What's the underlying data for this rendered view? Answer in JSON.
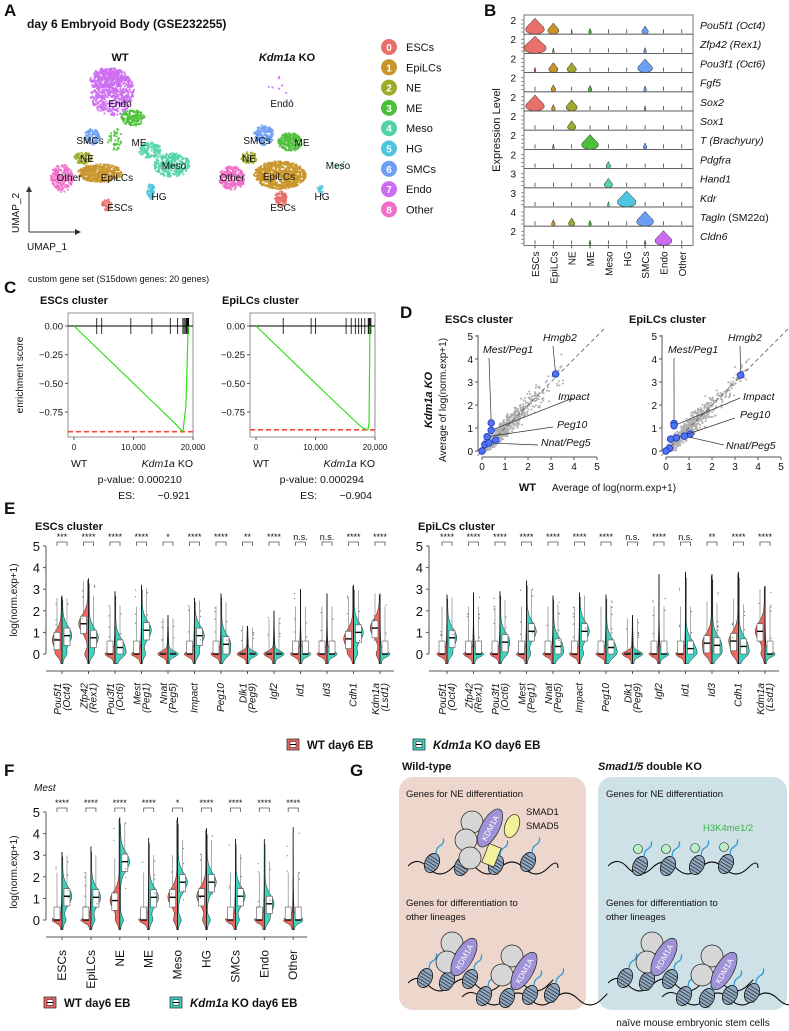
{
  "panel_labels": {
    "A": "A",
    "B": "B",
    "C": "C",
    "D": "D",
    "E": "E",
    "F": "F",
    "G": "G"
  },
  "A": {
    "title": "day 6 Embryoid Body (GSE232255)",
    "wt_title": "WT",
    "ko_title_gene": "Kdm1a",
    "ko_title_suffix": " KO",
    "umap_x": "UMAP_1",
    "umap_y": "UMAP_2",
    "clusters": [
      {
        "id": "0",
        "name": "ESCs",
        "color": "#E8706A"
      },
      {
        "id": "1",
        "name": "EpiLCs",
        "color": "#C9952A"
      },
      {
        "id": "2",
        "name": "NE",
        "color": "#9EAA2A"
      },
      {
        "id": "3",
        "name": "ME",
        "color": "#4CBF3A"
      },
      {
        "id": "4",
        "name": "Meso",
        "color": "#52D3A6"
      },
      {
        "id": "5",
        "name": "HG",
        "color": "#4EC4DE"
      },
      {
        "id": "6",
        "name": "SMCs",
        "color": "#6E9EF2"
      },
      {
        "id": "7",
        "name": "Endo",
        "color": "#CC6CF0"
      },
      {
        "id": "8",
        "name": "Other",
        "color": "#F06EC8"
      }
    ]
  },
  "chart_data": [
    {
      "panel": "B",
      "type": "violin",
      "ylabel": "Expression Level",
      "categories": [
        "ESCs",
        "EpiLCs",
        "NE",
        "ME",
        "Meso",
        "HG",
        "SMCs",
        "Endo",
        "Other"
      ],
      "genes": [
        {
          "gene": "Pou5f1",
          "alias": "(Oct4)",
          "alias_italic": true,
          "ytick": "2",
          "widths": [
            1,
            0.6,
            0.05,
            0.15,
            0,
            0,
            0.35,
            0,
            0
          ]
        },
        {
          "gene": "Zfp42",
          "alias": "(Rex1)",
          "alias_italic": true,
          "ytick": "2",
          "widths": [
            1.2,
            0.1,
            0,
            0,
            0,
            0,
            0.15,
            0,
            0
          ]
        },
        {
          "gene": "Pou3f1",
          "alias": "(Oct6)",
          "alias_italic": true,
          "ytick": "2",
          "widths": [
            0.1,
            0.5,
            0.5,
            0,
            0,
            0,
            0.8,
            0,
            0
          ]
        },
        {
          "gene": "Fgf5",
          "alias": "",
          "alias_italic": true,
          "ytick": "2",
          "widths": [
            0,
            0.25,
            0,
            0.2,
            0,
            0,
            0.15,
            0,
            0
          ]
        },
        {
          "gene": "Sox2",
          "alias": "",
          "alias_italic": true,
          "ytick": "2",
          "widths": [
            1,
            0.2,
            0.6,
            0,
            0,
            0,
            0.1,
            0,
            0
          ]
        },
        {
          "gene": "Sox1",
          "alias": "",
          "alias_italic": true,
          "ytick": "2",
          "widths": [
            0,
            0,
            0.45,
            0,
            0,
            0,
            0,
            0,
            0
          ]
        },
        {
          "gene": "T",
          "alias": "(Brachyury)",
          "alias_italic": true,
          "ytick": "2",
          "widths": [
            0,
            0.1,
            0,
            0.9,
            0,
            0,
            0.2,
            0,
            0
          ]
        },
        {
          "gene": "Pdgfra",
          "alias": "",
          "alias_italic": true,
          "ytick": "2",
          "widths": [
            0,
            0,
            0,
            0,
            0.25,
            0,
            0,
            0,
            0
          ]
        },
        {
          "gene": "Hand1",
          "alias": "",
          "alias_italic": true,
          "ytick": "3",
          "widths": [
            0,
            0,
            0,
            0,
            0.45,
            0,
            0,
            0,
            0
          ]
        },
        {
          "gene": "Kdr",
          "alias": "",
          "alias_italic": true,
          "ytick": "3",
          "widths": [
            0,
            0,
            0,
            0,
            0.1,
            1,
            0,
            0,
            0
          ]
        },
        {
          "gene": "Tagln",
          "alias": "(SM22α)",
          "alias_italic": false,
          "ytick": "4",
          "widths": [
            0,
            0.2,
            0.35,
            0.15,
            0,
            0,
            0.9,
            0,
            0
          ]
        },
        {
          "gene": "Cldn6",
          "alias": "",
          "alias_italic": true,
          "ytick": "2",
          "widths": [
            0,
            0,
            0,
            0.1,
            0,
            0,
            0.1,
            0.9,
            0
          ]
        }
      ]
    },
    {
      "panel": "C",
      "type": "line",
      "suptitle": "custom gene set (S15down genes: 20 genes)",
      "title": "ESCs cluster",
      "ylabel": "enrichment score",
      "yticks": [
        "0.00",
        "−0.25",
        "−0.50",
        "−0.75"
      ],
      "ytick_values": [
        0,
        -0.25,
        -0.5,
        -0.75
      ],
      "xticks": [
        "0",
        "10,000",
        "20,000"
      ],
      "xtick_values": [
        0,
        10000,
        20000
      ],
      "xlim": [
        0,
        20000
      ],
      "x_left_label": "WT",
      "x_right_gene": "Kdm1a",
      "x_right_suffix": " KO",
      "pvalue_label": "p-value:",
      "pvalue": "0.000210",
      "es_label": "ES:",
      "es": "−0.921",
      "es_value": -0.921,
      "hits": [
        3820,
        4660,
        9550,
        13090,
        16180,
        17420,
        18300,
        18500,
        18700,
        18900,
        19000,
        19100,
        19200,
        19270
      ],
      "curve": [
        [
          0,
          0
        ],
        [
          6000,
          -0.3
        ],
        [
          12000,
          -0.6
        ],
        [
          17000,
          -0.85
        ],
        [
          18300,
          -0.921
        ],
        [
          18800,
          -0.7
        ],
        [
          19200,
          0
        ]
      ]
    },
    {
      "panel": "C",
      "type": "line",
      "title": "EpiLCs cluster",
      "yticks": [
        "0.00",
        "−0.25",
        "−0.50",
        "−0.75"
      ],
      "ytick_values": [
        0,
        -0.25,
        -0.5,
        -0.75
      ],
      "xticks": [
        "0",
        "10,000",
        "20,000"
      ],
      "xtick_values": [
        0,
        10000,
        20000
      ],
      "xlim": [
        0,
        20000
      ],
      "x_left_label": "WT",
      "x_right_gene": "Kdm1a",
      "x_right_suffix": " KO",
      "pvalue_label": "p-value:",
      "pvalue": "0.000294",
      "es_label": "ES:",
      "es": "−0.904",
      "es_value": -0.904,
      "hits": [
        4570,
        9260,
        10000,
        15140,
        16000,
        16690,
        17260,
        17710,
        18290,
        18860,
        19000,
        19150,
        19310
      ],
      "curve": [
        [
          0,
          0
        ],
        [
          6000,
          -0.3
        ],
        [
          12000,
          -0.6
        ],
        [
          17500,
          -0.87
        ],
        [
          18200,
          -0.895
        ],
        [
          18800,
          -0.904
        ],
        [
          19000,
          -0.85
        ],
        [
          19150,
          0
        ]
      ]
    },
    {
      "panel": "D",
      "type": "scatter",
      "title": "ESCs cluster",
      "xlim": [
        0,
        5
      ],
      "ylim": [
        0,
        5
      ],
      "ticks": [
        "0",
        "1",
        "2",
        "3",
        "4",
        "5"
      ],
      "ylabel_bold": "Kdm1a KO",
      "ylabel": "Average of log(norm.exp+1)",
      "xlabel_bold": "WT",
      "xlabel": "Average of log(norm.exp+1)",
      "highlighted": [
        {
          "label": "Hmgb2",
          "wt": 3.2,
          "ko": 3.35
        },
        {
          "label": "Mest/Peg1",
          "wt": 0.4,
          "ko": 1.22
        },
        {
          "label": "Impact",
          "wt": 0.4,
          "ko": 0.9
        },
        {
          "label": "Peg10",
          "wt": 0.22,
          "ko": 0.62
        },
        {
          "label": "Nnat/Peg5",
          "wt": 0.3,
          "ko": 0.35
        }
      ],
      "other_highlighted": [
        [
          0.6,
          0.47
        ],
        [
          0.12,
          0.28
        ],
        [
          0,
          0
        ]
      ]
    },
    {
      "panel": "D",
      "type": "scatter",
      "title": "EpiLCs cluster",
      "xlim": [
        0,
        5
      ],
      "ylim": [
        0,
        5
      ],
      "ticks": [
        "0",
        "1",
        "2",
        "3",
        "4",
        "5"
      ],
      "highlighted": [
        {
          "label": "Hmgb2",
          "wt": 3.25,
          "ko": 3.3
        },
        {
          "label": "Mest/Peg1",
          "wt": 0.35,
          "ko": 1.2
        },
        {
          "label": "Impact",
          "wt": 0.35,
          "ko": 1.1
        },
        {
          "label": "Peg10",
          "wt": 0.45,
          "ko": 0.57
        },
        {
          "label": "Nnat/Peg5",
          "wt": 0.8,
          "ko": 0.65
        }
      ],
      "other_highlighted": [
        [
          1.05,
          0.73
        ],
        [
          0.2,
          0.52
        ],
        [
          0.15,
          0.12
        ],
        [
          0,
          0
        ]
      ]
    },
    {
      "panel": "E",
      "type": "violin",
      "title": "ESCs cluster",
      "ylabel": "log(norm.exp+1)",
      "yticks": [
        "0",
        "1",
        "2",
        "3",
        "4",
        "5"
      ],
      "ylim": [
        0,
        5
      ],
      "groups": [
        {
          "gene": "Pou5f1",
          "alias": "(Oct4)",
          "sig": "***",
          "wt_median": 0.65,
          "ko_median": 0.85,
          "max": 2.7
        },
        {
          "gene": "Zfp42",
          "alias": "(Rex1)",
          "sig": "****",
          "wt_median": 1.4,
          "ko_median": 0.75,
          "max": 3.5
        },
        {
          "gene": "Pou3f1",
          "alias": "(Oct6)",
          "sig": "****",
          "wt_median": 0,
          "ko_median": 0.3,
          "max": 2.9
        },
        {
          "gene": "Mest",
          "alias": "(Peg1)",
          "sig": "****",
          "wt_median": 0,
          "ko_median": 1.1,
          "max": 3.2
        },
        {
          "gene": "Nnat",
          "alias": "(Peg5)",
          "sig": "*",
          "wt_median": 0,
          "ko_median": 0,
          "max": 1.8
        },
        {
          "gene": "Impact",
          "alias": "",
          "sig": "****",
          "wt_median": 0,
          "ko_median": 0.85,
          "max": 2.6
        },
        {
          "gene": "Peg10",
          "alias": "",
          "sig": "****",
          "wt_median": 0,
          "ko_median": 0.45,
          "max": 2.8
        },
        {
          "gene": "Dlk1",
          "alias": "(Peg9)",
          "sig": "**",
          "wt_median": 0,
          "ko_median": 0,
          "max": 1.3
        },
        {
          "gene": "Igf2",
          "alias": "",
          "sig": "****",
          "wt_median": 0,
          "ko_median": 0,
          "max": 2.0
        },
        {
          "gene": "Id1",
          "alias": "",
          "sig": "n.s.",
          "wt_median": 0,
          "ko_median": 0,
          "max": 3.0
        },
        {
          "gene": "Id3",
          "alias": "",
          "sig": "n.s.",
          "wt_median": 0,
          "ko_median": 0,
          "max": 2.8
        },
        {
          "gene": "Cdh1",
          "alias": "",
          "sig": "****",
          "wt_median": 0.7,
          "ko_median": 1.0,
          "max": 3.2
        },
        {
          "gene": "Kdm1a",
          "alias": "(Lsd1)",
          "sig": "****",
          "wt_median": 1.2,
          "ko_median": 0,
          "max": 2.8
        }
      ]
    },
    {
      "panel": "E",
      "type": "violin",
      "title": "EpiLCs cluster",
      "yticks": [
        "0",
        "1",
        "2",
        "3",
        "4",
        "5"
      ],
      "ylim": [
        0,
        5
      ],
      "groups": [
        {
          "gene": "Pou5f1",
          "alias": "(Oct4)",
          "sig": "****",
          "wt_median": 0,
          "ko_median": 0.75,
          "max": 2.75
        },
        {
          "gene": "Zfp42",
          "alias": "(Rex1)",
          "sig": "****",
          "wt_median": 0,
          "ko_median": 0,
          "max": 2.85
        },
        {
          "gene": "Pou3f1",
          "alias": "(Oct6)",
          "sig": "****",
          "wt_median": 0,
          "ko_median": 0.55,
          "max": 2.9
        },
        {
          "gene": "Mest",
          "alias": "(Peg1)",
          "sig": "****",
          "wt_median": 0,
          "ko_median": 1.05,
          "max": 3.4
        },
        {
          "gene": "Nnat",
          "alias": "(Peg5)",
          "sig": "****",
          "wt_median": 0,
          "ko_median": 0.35,
          "max": 2.7
        },
        {
          "gene": "Impact",
          "alias": "",
          "sig": "****",
          "wt_median": 0,
          "ko_median": 1.05,
          "max": 2.85
        },
        {
          "gene": "Peg10",
          "alias": "",
          "sig": "****",
          "wt_median": 0,
          "ko_median": 0.3,
          "max": 2.75
        },
        {
          "gene": "Dlk1",
          "alias": "(Peg9)",
          "sig": "n.s.",
          "wt_median": 0,
          "ko_median": 0,
          "max": 1.8
        },
        {
          "gene": "Igf2",
          "alias": "",
          "sig": "****",
          "wt_median": 0,
          "ko_median": 0,
          "max": 3.7
        },
        {
          "gene": "Id1",
          "alias": "",
          "sig": "n.s.",
          "wt_median": 0,
          "ko_median": 0.25,
          "max": 3.8
        },
        {
          "gene": "Id3",
          "alias": "",
          "sig": "**",
          "wt_median": 0.5,
          "ko_median": 0.4,
          "max": 3.7
        },
        {
          "gene": "Cdh1",
          "alias": "",
          "sig": "****",
          "wt_median": 0.6,
          "ko_median": 0.35,
          "max": 3.8
        },
        {
          "gene": "Kdm1a",
          "alias": "(Lsd1)",
          "sig": "****",
          "wt_median": 1.05,
          "ko_median": 0,
          "max": 3.15
        }
      ]
    },
    {
      "panel": "F",
      "type": "violin",
      "title": "Mest",
      "ylabel": "log(norm.exp+1)",
      "yticks": [
        "0",
        "1",
        "2",
        "3",
        "4",
        "5"
      ],
      "ylim": [
        0,
        5
      ],
      "groups": [
        {
          "gene": "ESCs",
          "sig": "****",
          "wt_median": 0,
          "ko_median": 1.1,
          "max": 3.15
        },
        {
          "gene": "EpiLCs",
          "sig": "****",
          "wt_median": 0,
          "ko_median": 1.05,
          "max": 3.4
        },
        {
          "gene": "NE",
          "sig": "****",
          "wt_median": 0.9,
          "ko_median": 2.7,
          "max": 4.75
        },
        {
          "gene": "ME",
          "sig": "****",
          "wt_median": 0,
          "ko_median": 1.05,
          "max": 3.8
        },
        {
          "gene": "Meso",
          "sig": "*",
          "wt_median": 1.05,
          "ko_median": 1.75,
          "max": 4.75
        },
        {
          "gene": "HG",
          "sig": "****",
          "wt_median": 1.1,
          "ko_median": 1.75,
          "max": 4.25
        },
        {
          "gene": "SMCs",
          "sig": "****",
          "wt_median": 0,
          "ko_median": 1.1,
          "max": 3.75
        },
        {
          "gene": "Endo",
          "sig": "****",
          "wt_median": 0,
          "ko_median": 0.75,
          "max": 3.75
        },
        {
          "gene": "Other",
          "sig": "****",
          "wt_median": 0,
          "ko_median": 0,
          "max": 4.3
        }
      ]
    }
  ],
  "legend": {
    "wt_label": "WT day6 EB",
    "ko_gene": "Kdm1a",
    "ko_suffix": " KO day6 EB",
    "wt_color": "#EE675F",
    "ko_color": "#3ED3BF"
  },
  "G": {
    "wt_title": "Wild-type",
    "ko_title_gene": "Smad1/5",
    "ko_title_suffix": " double KO",
    "ne_genes": "Genes for NE differentiation",
    "other_genes_line1": "Genes for differentiation to",
    "other_genes_line2": "other lineages",
    "smad1": "SMAD1",
    "smad5": "SMAD5",
    "kdm1a": "KDM1A",
    "h3k4": "H3K4me1/2",
    "caption": "naïve mouse embryonic stem cells",
    "wt_bg": "#EDD6CB",
    "ko_bg": "#CDE1E6",
    "mark_color": "#3BB54A"
  }
}
